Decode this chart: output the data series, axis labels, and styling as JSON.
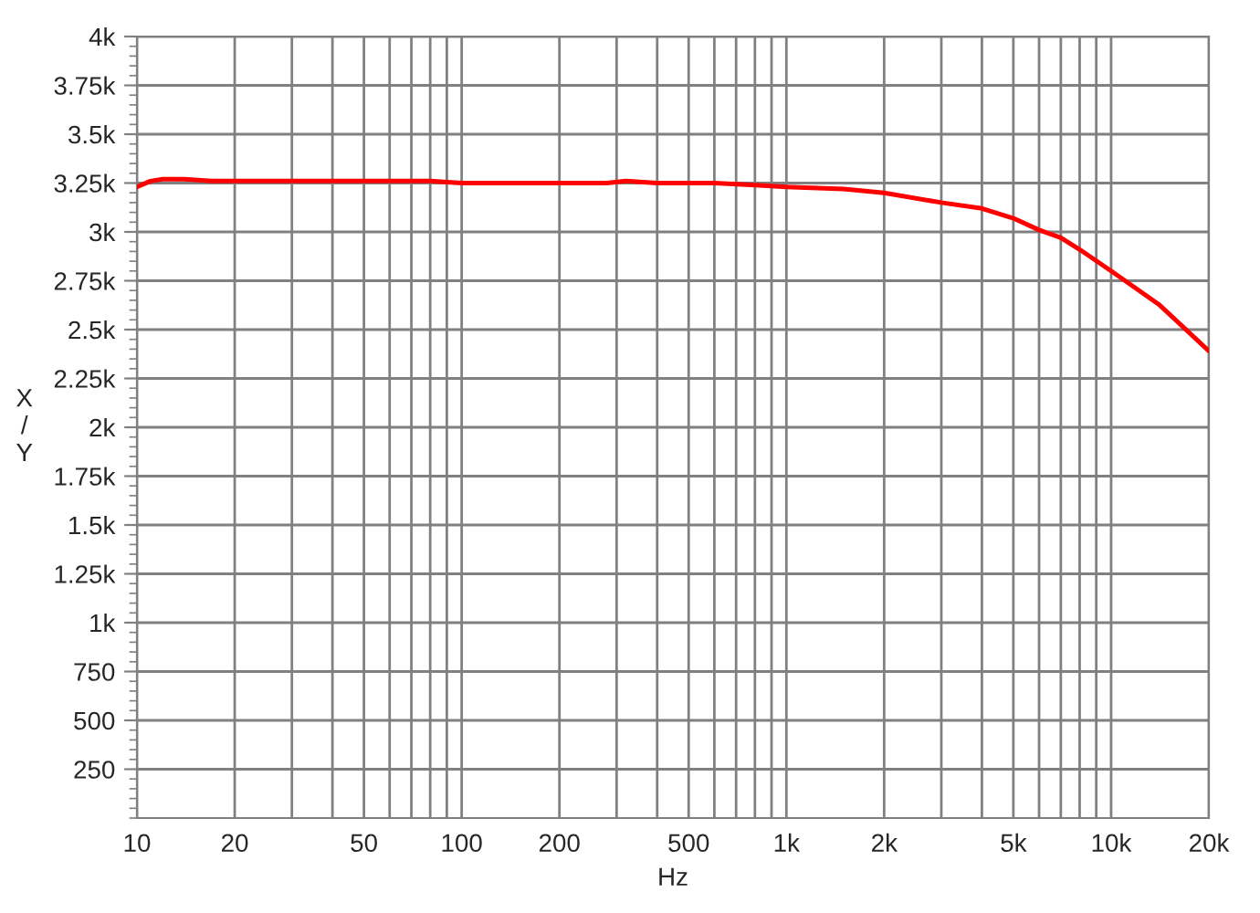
{
  "chart_data": {
    "type": "line",
    "xlabel": "Hz",
    "ylabel": "X\n/\nY",
    "log": "x",
    "grid": true,
    "marker": "none",
    "line_style": "solid",
    "xlim": [
      10,
      20000
    ],
    "ylim": [
      0,
      4000
    ],
    "xticks": [
      10,
      20,
      {
        "value": 30,
        "label": null
      },
      {
        "value": 40,
        "label": null
      },
      50,
      {
        "value": 60,
        "label": null
      },
      {
        "value": 70,
        "label": null
      },
      {
        "value": 80,
        "label": null
      },
      {
        "value": 90,
        "label": null
      },
      100,
      200,
      {
        "value": 300,
        "label": null
      },
      {
        "value": 400,
        "label": null
      },
      500,
      {
        "value": 600,
        "label": null
      },
      {
        "value": 700,
        "label": null
      },
      {
        "value": 800,
        "label": null
      },
      {
        "value": 900,
        "label": null
      },
      {
        "value": 1000,
        "label": "1k"
      },
      {
        "value": 2000,
        "label": "2k"
      },
      {
        "value": 3000,
        "label": null
      },
      {
        "value": 4000,
        "label": null
      },
      {
        "value": 5000,
        "label": "5k"
      },
      {
        "value": 6000,
        "label": null
      },
      {
        "value": 7000,
        "label": null
      },
      {
        "value": 8000,
        "label": null
      },
      {
        "value": 9000,
        "label": null
      },
      {
        "value": 10000,
        "label": "10k"
      },
      {
        "value": 20000,
        "label": "20k"
      }
    ],
    "yticks": [
      250,
      500,
      750,
      {
        "value": 1000,
        "label": "1k"
      },
      {
        "value": 1250,
        "label": "1.25k"
      },
      {
        "value": 1500,
        "label": "1.5k"
      },
      {
        "value": 1750,
        "label": "1.75k"
      },
      {
        "value": 2000,
        "label": "2k"
      },
      {
        "value": 2250,
        "label": "2.25k"
      },
      {
        "value": 2500,
        "label": "2.5k"
      },
      {
        "value": 2750,
        "label": "2.75k"
      },
      {
        "value": 3000,
        "label": "3k"
      },
      {
        "value": 3250,
        "label": "3.25k"
      },
      {
        "value": 3500,
        "label": "3.5k"
      },
      {
        "value": 3750,
        "label": "3.75k"
      },
      {
        "value": 4000,
        "label": "4k"
      }
    ],
    "series": [
      {
        "color": "#ff0000",
        "x": [
          10,
          11,
          12,
          14,
          17,
          20,
          30,
          45,
          50,
          70,
          80,
          100,
          150,
          200,
          280,
          320,
          400,
          600,
          800,
          1000,
          1500,
          2000,
          3000,
          4000,
          5000,
          6000,
          7000,
          8000,
          10000,
          14000,
          20000
        ],
        "values": [
          3230,
          3260,
          3270,
          3270,
          3260,
          3260,
          3260,
          3260,
          3260,
          3260,
          3260,
          3250,
          3250,
          3250,
          3250,
          3260,
          3250,
          3250,
          3240,
          3230,
          3220,
          3200,
          3150,
          3120,
          3070,
          3010,
          2970,
          2910,
          2800,
          2630,
          2390
        ]
      }
    ]
  }
}
